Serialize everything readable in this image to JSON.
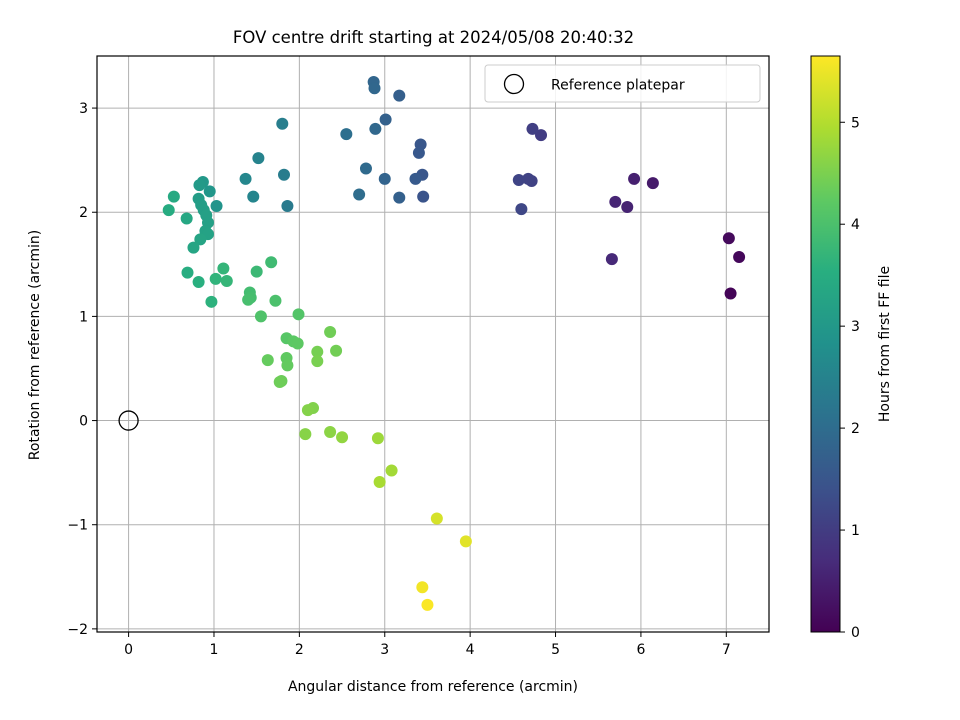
{
  "chart_data": {
    "type": "scatter",
    "title": "FOV centre drift starting at 2024/05/08 20:40:32",
    "xlabel": "Angular distance from reference (arcmin)",
    "ylabel": "Rotation from reference (arcmin)",
    "xlim": [
      -0.37,
      7.5
    ],
    "ylim": [
      -2.03,
      3.5
    ],
    "xticks": [
      0,
      1,
      2,
      3,
      4,
      5,
      6,
      7
    ],
    "yticks": [
      -2,
      -1,
      0,
      1,
      2,
      3
    ],
    "grid": true,
    "colormap": "viridis",
    "colorbar": {
      "label": "Hours from first FF file",
      "range": [
        0,
        5.65
      ],
      "ticks": [
        0,
        1,
        2,
        3,
        4,
        5
      ]
    },
    "legend": {
      "placement": "top-right",
      "entries": [
        "Reference platepar"
      ]
    },
    "reference_point": {
      "x": 0,
      "y": 0
    },
    "points": [
      {
        "x": 7.05,
        "y": 1.22,
        "h": 0.05
      },
      {
        "x": 7.15,
        "y": 1.57,
        "h": 0.1
      },
      {
        "x": 7.03,
        "y": 1.75,
        "h": 0.15
      },
      {
        "x": 6.14,
        "y": 2.28,
        "h": 0.4
      },
      {
        "x": 5.92,
        "y": 2.32,
        "h": 0.5
      },
      {
        "x": 5.84,
        "y": 2.05,
        "h": 0.55
      },
      {
        "x": 5.7,
        "y": 2.1,
        "h": 0.6
      },
      {
        "x": 5.66,
        "y": 1.55,
        "h": 0.65
      },
      {
        "x": 4.83,
        "y": 2.74,
        "h": 1.0
      },
      {
        "x": 4.73,
        "y": 2.8,
        "h": 1.05
      },
      {
        "x": 4.72,
        "y": 2.3,
        "h": 1.1
      },
      {
        "x": 4.68,
        "y": 2.32,
        "h": 1.12
      },
      {
        "x": 4.57,
        "y": 2.31,
        "h": 1.15
      },
      {
        "x": 4.6,
        "y": 2.03,
        "h": 1.2
      },
      {
        "x": 3.45,
        "y": 2.15,
        "h": 1.45
      },
      {
        "x": 3.44,
        "y": 2.36,
        "h": 1.5
      },
      {
        "x": 3.42,
        "y": 2.65,
        "h": 1.52
      },
      {
        "x": 3.4,
        "y": 2.57,
        "h": 1.55
      },
      {
        "x": 3.36,
        "y": 2.32,
        "h": 1.6
      },
      {
        "x": 3.17,
        "y": 3.12,
        "h": 1.7
      },
      {
        "x": 3.17,
        "y": 2.14,
        "h": 1.72
      },
      {
        "x": 3.01,
        "y": 2.89,
        "h": 1.75
      },
      {
        "x": 3.0,
        "y": 2.32,
        "h": 1.8
      },
      {
        "x": 2.87,
        "y": 3.25,
        "h": 1.85
      },
      {
        "x": 2.88,
        "y": 3.19,
        "h": 1.88
      },
      {
        "x": 2.89,
        "y": 2.8,
        "h": 1.9
      },
      {
        "x": 2.78,
        "y": 2.42,
        "h": 1.95
      },
      {
        "x": 2.7,
        "y": 2.17,
        "h": 2.0
      },
      {
        "x": 2.55,
        "y": 2.75,
        "h": 2.05
      },
      {
        "x": 1.86,
        "y": 2.06,
        "h": 2.3
      },
      {
        "x": 1.82,
        "y": 2.36,
        "h": 2.35
      },
      {
        "x": 1.8,
        "y": 2.85,
        "h": 2.4
      },
      {
        "x": 1.52,
        "y": 2.52,
        "h": 2.5
      },
      {
        "x": 1.46,
        "y": 2.15,
        "h": 2.55
      },
      {
        "x": 1.37,
        "y": 2.32,
        "h": 2.6
      },
      {
        "x": 1.03,
        "y": 2.06,
        "h": 2.9
      },
      {
        "x": 0.95,
        "y": 2.2,
        "h": 2.95
      },
      {
        "x": 0.87,
        "y": 2.29,
        "h": 3.0
      },
      {
        "x": 0.83,
        "y": 2.26,
        "h": 3.05
      },
      {
        "x": 0.82,
        "y": 2.13,
        "h": 3.1
      },
      {
        "x": 0.85,
        "y": 2.07,
        "h": 3.12
      },
      {
        "x": 0.88,
        "y": 2.02,
        "h": 3.15
      },
      {
        "x": 0.91,
        "y": 1.97,
        "h": 3.18
      },
      {
        "x": 0.93,
        "y": 1.9,
        "h": 3.2
      },
      {
        "x": 0.9,
        "y": 1.82,
        "h": 3.22
      },
      {
        "x": 0.93,
        "y": 1.79,
        "h": 3.25
      },
      {
        "x": 0.84,
        "y": 1.74,
        "h": 3.28
      },
      {
        "x": 0.76,
        "y": 1.66,
        "h": 3.3
      },
      {
        "x": 0.68,
        "y": 1.94,
        "h": 3.35
      },
      {
        "x": 0.53,
        "y": 2.15,
        "h": 3.4
      },
      {
        "x": 0.47,
        "y": 2.02,
        "h": 3.45
      },
      {
        "x": 0.69,
        "y": 1.42,
        "h": 3.5
      },
      {
        "x": 0.82,
        "y": 1.33,
        "h": 3.55
      },
      {
        "x": 0.97,
        "y": 1.14,
        "h": 3.6
      },
      {
        "x": 1.02,
        "y": 1.36,
        "h": 3.65
      },
      {
        "x": 1.11,
        "y": 1.46,
        "h": 3.7
      },
      {
        "x": 1.15,
        "y": 1.34,
        "h": 3.72
      },
      {
        "x": 1.5,
        "y": 1.43,
        "h": 3.8
      },
      {
        "x": 1.67,
        "y": 1.52,
        "h": 3.85
      },
      {
        "x": 1.42,
        "y": 1.23,
        "h": 3.9
      },
      {
        "x": 1.43,
        "y": 1.18,
        "h": 3.92
      },
      {
        "x": 1.4,
        "y": 1.16,
        "h": 3.95
      },
      {
        "x": 1.72,
        "y": 1.15,
        "h": 4.0
      },
      {
        "x": 1.55,
        "y": 1.0,
        "h": 4.05
      },
      {
        "x": 1.99,
        "y": 1.02,
        "h": 4.1
      },
      {
        "x": 1.85,
        "y": 0.79,
        "h": 4.15
      },
      {
        "x": 1.93,
        "y": 0.76,
        "h": 4.2
      },
      {
        "x": 1.98,
        "y": 0.74,
        "h": 4.22
      },
      {
        "x": 1.85,
        "y": 0.6,
        "h": 4.25
      },
      {
        "x": 1.86,
        "y": 0.53,
        "h": 4.28
      },
      {
        "x": 1.63,
        "y": 0.58,
        "h": 4.3
      },
      {
        "x": 1.79,
        "y": 0.38,
        "h": 4.35
      },
      {
        "x": 1.77,
        "y": 0.37,
        "h": 4.38
      },
      {
        "x": 2.36,
        "y": 0.85,
        "h": 4.4
      },
      {
        "x": 2.43,
        "y": 0.67,
        "h": 4.42
      },
      {
        "x": 2.21,
        "y": 0.66,
        "h": 4.45
      },
      {
        "x": 2.21,
        "y": 0.57,
        "h": 4.48
      },
      {
        "x": 2.16,
        "y": 0.12,
        "h": 4.55
      },
      {
        "x": 2.1,
        "y": 0.1,
        "h": 4.58
      },
      {
        "x": 2.07,
        "y": -0.13,
        "h": 4.6
      },
      {
        "x": 2.36,
        "y": -0.11,
        "h": 4.65
      },
      {
        "x": 2.5,
        "y": -0.16,
        "h": 4.7
      },
      {
        "x": 2.92,
        "y": -0.17,
        "h": 4.8
      },
      {
        "x": 3.08,
        "y": -0.48,
        "h": 4.85
      },
      {
        "x": 2.94,
        "y": -0.59,
        "h": 4.9
      },
      {
        "x": 3.61,
        "y": -0.94,
        "h": 5.3
      },
      {
        "x": 3.95,
        "y": -1.16,
        "h": 5.4
      },
      {
        "x": 3.44,
        "y": -1.6,
        "h": 5.55
      },
      {
        "x": 3.5,
        "y": -1.77,
        "h": 5.62
      }
    ]
  }
}
